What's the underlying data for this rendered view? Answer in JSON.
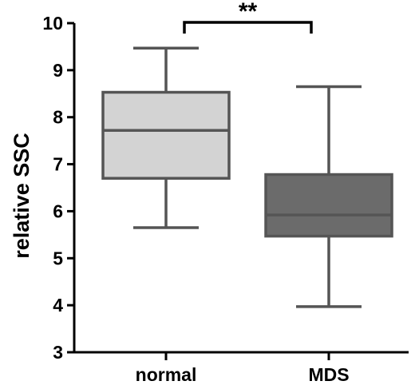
{
  "chart_data": {
    "type": "box",
    "ylabel": "relative SSC",
    "xlabel": "",
    "ylim": [
      3,
      10
    ],
    "yticks": [
      3,
      4,
      5,
      6,
      7,
      8,
      9,
      10
    ],
    "categories": [
      "normal",
      "MDS"
    ],
    "boxes": [
      {
        "category": "normal",
        "min": 5.65,
        "q1": 6.7,
        "median": 7.72,
        "q3": 8.53,
        "max": 9.47,
        "color": "#d3d3d3"
      },
      {
        "category": "MDS",
        "min": 3.97,
        "q1": 5.47,
        "median": 5.92,
        "q3": 6.78,
        "max": 8.65,
        "color": "#6b6b6b"
      }
    ],
    "significance": {
      "between": [
        "normal",
        "MDS"
      ],
      "label": "**"
    },
    "grid": false,
    "legend": "none"
  }
}
